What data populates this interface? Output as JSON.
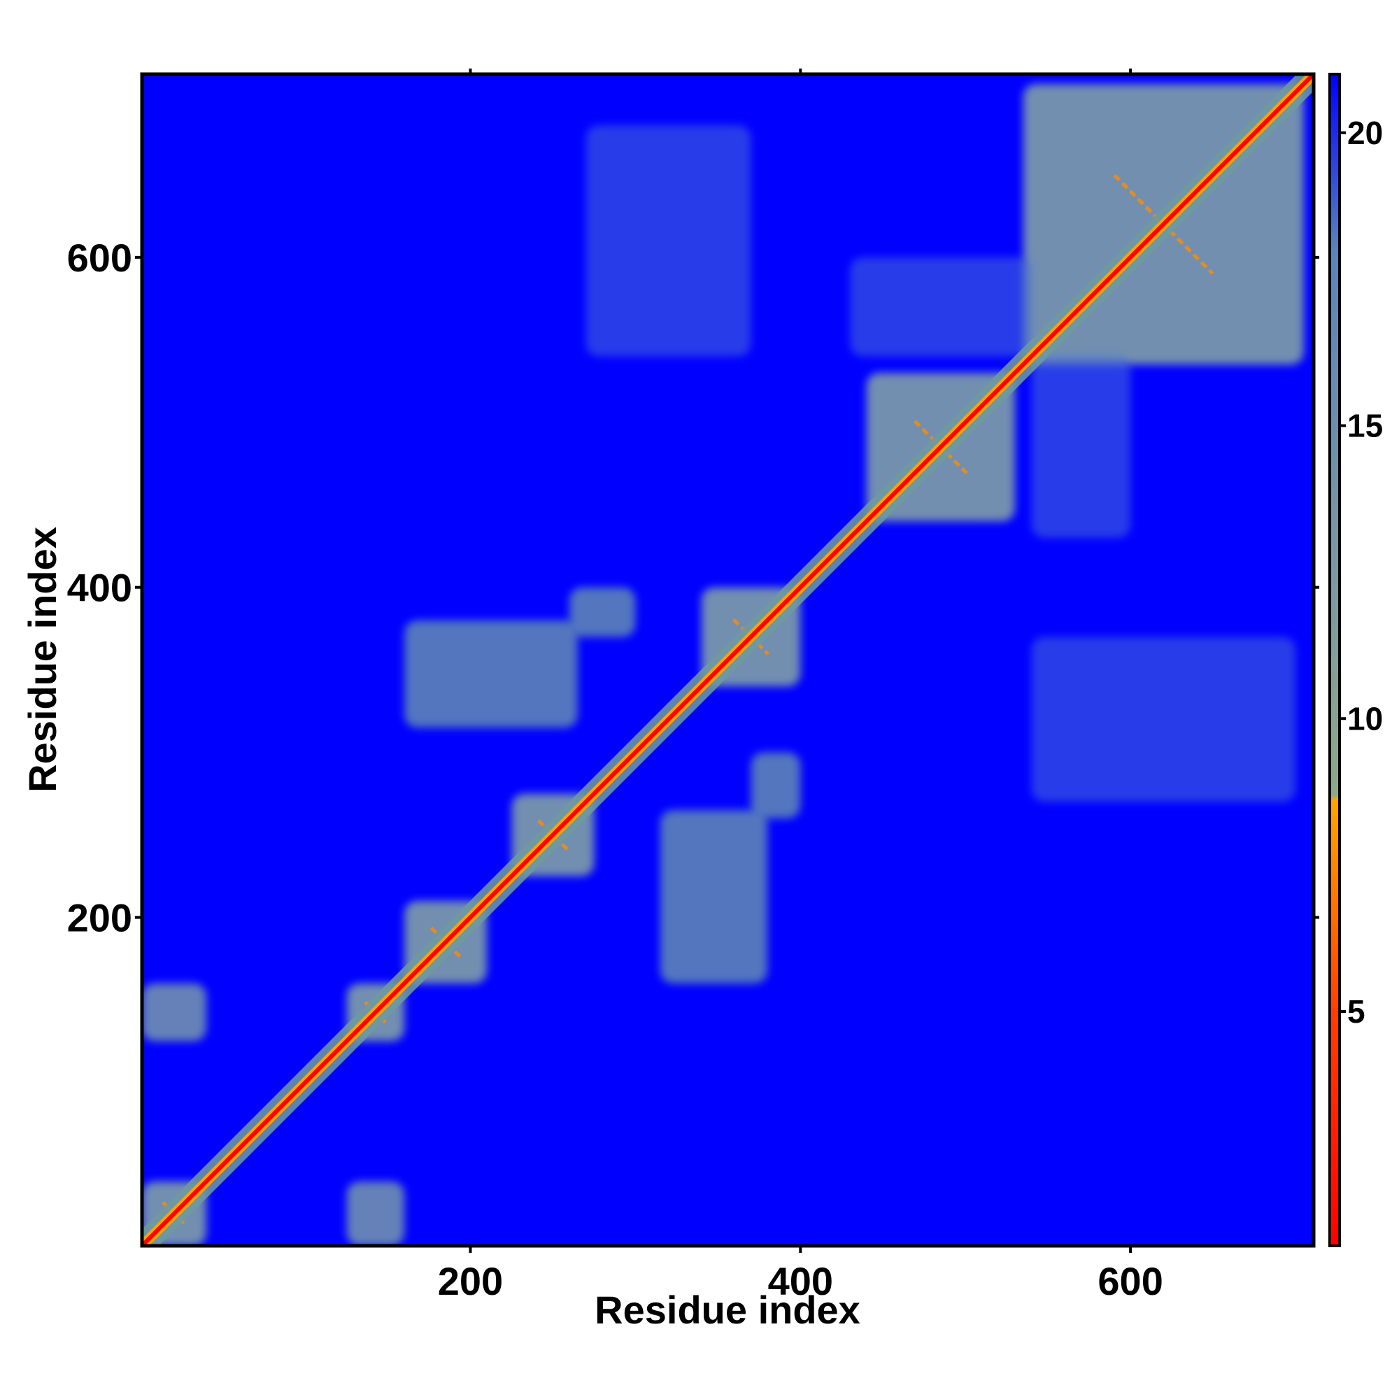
{
  "chart_data": {
    "type": "heatmap",
    "xlabel": "Residue index",
    "ylabel": "Residue index",
    "xlim": [
      1,
      711
    ],
    "ylim": [
      1,
      711
    ],
    "x_ticks": [
      200,
      400,
      600
    ],
    "y_ticks": [
      200,
      400,
      600
    ],
    "x_tick_labels": [
      "200",
      "400",
      "600"
    ],
    "y_tick_labels": [
      "200",
      "400",
      "600"
    ],
    "colorbar": {
      "range": [
        1,
        21
      ],
      "ticks": [
        5,
        10,
        15,
        20
      ],
      "tick_labels": [
        "5",
        "10",
        "15",
        "20"
      ],
      "colors": [
        {
          "stop": 0.0,
          "color": "#ff0000"
        },
        {
          "stop": 0.2,
          "color": "#ff4000"
        },
        {
          "stop": 0.38,
          "color": "#ffa500"
        },
        {
          "stop": 0.385,
          "color": "#8fa888"
        },
        {
          "stop": 0.55,
          "color": "#7f9aa0"
        },
        {
          "stop": 0.85,
          "color": "#5b83b8"
        },
        {
          "stop": 1.0,
          "color": "#0000ff"
        }
      ]
    },
    "background_color": "#0000ff",
    "diagonal_color": "#ff0000",
    "contact_color": "#5b83b8",
    "contact_regions": [
      {
        "x": [
          1,
          40
        ],
        "y": [
          1,
          40
        ],
        "level": "near"
      },
      {
        "x": [
          125,
          160
        ],
        "y": [
          125,
          160
        ],
        "level": "near"
      },
      {
        "x": [
          160,
          210
        ],
        "y": [
          160,
          210
        ],
        "level": "near"
      },
      {
        "x": [
          225,
          275
        ],
        "y": [
          225,
          275
        ],
        "level": "near"
      },
      {
        "x": [
          340,
          400
        ],
        "y": [
          340,
          400
        ],
        "level": "near"
      },
      {
        "x": [
          440,
          530
        ],
        "y": [
          440,
          530
        ],
        "level": "near"
      },
      {
        "x": [
          535,
          705
        ],
        "y": [
          535,
          705
        ],
        "level": "near"
      },
      {
        "x": [
          1,
          40
        ],
        "y": [
          125,
          160
        ],
        "level": "medium"
      },
      {
        "x": [
          125,
          160
        ],
        "y": [
          1,
          40
        ],
        "level": "medium"
      },
      {
        "x": [
          160,
          265
        ],
        "y": [
          315,
          380
        ],
        "level": "far"
      },
      {
        "x": [
          315,
          380
        ],
        "y": [
          160,
          265
        ],
        "level": "far"
      },
      {
        "x": [
          260,
          300
        ],
        "y": [
          370,
          400
        ],
        "level": "far"
      },
      {
        "x": [
          370,
          400
        ],
        "y": [
          260,
          300
        ],
        "level": "far"
      },
      {
        "x": [
          270,
          370
        ],
        "y": [
          540,
          680
        ],
        "level": "sparse"
      },
      {
        "x": [
          540,
          700
        ],
        "y": [
          270,
          370
        ],
        "level": "sparse"
      },
      {
        "x": [
          430,
          540
        ],
        "y": [
          540,
          600
        ],
        "level": "sparse"
      },
      {
        "x": [
          540,
          600
        ],
        "y": [
          430,
          540
        ],
        "level": "sparse"
      }
    ]
  }
}
